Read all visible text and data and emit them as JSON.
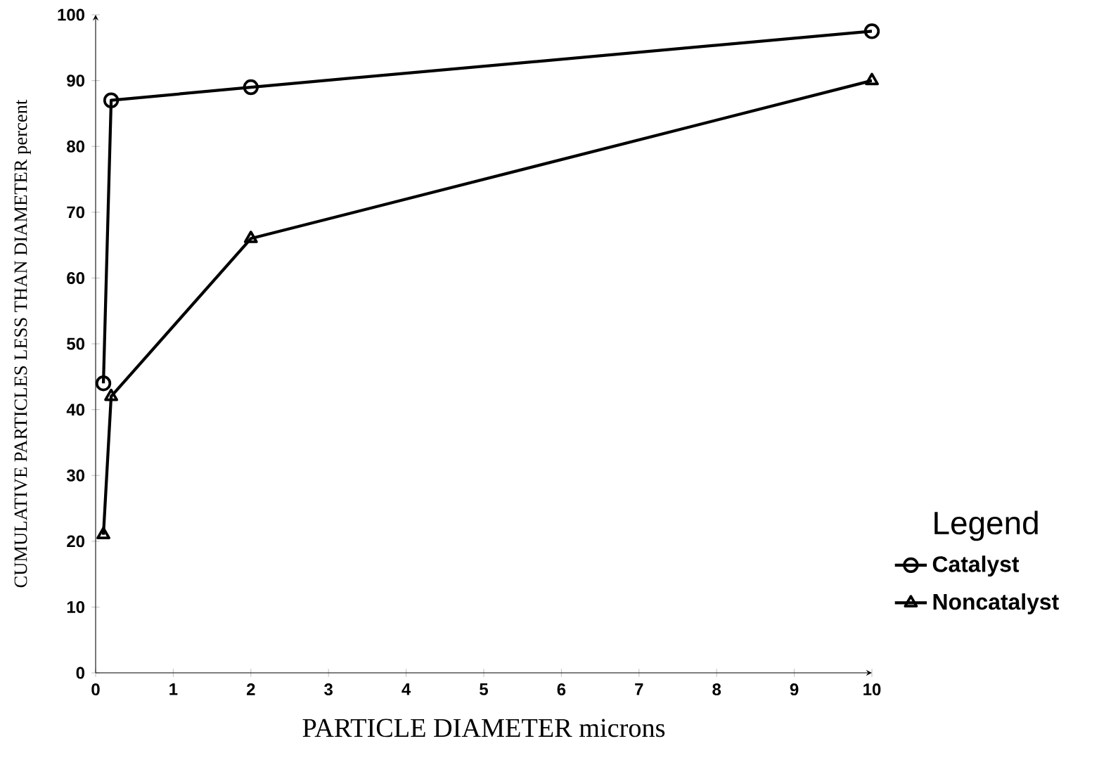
{
  "chart_data": {
    "type": "line",
    "xlabel": "PARTICLE DIAMETER microns",
    "ylabel": "CUMULATIVE PARTICLES LESS THAN DIAMETER percent",
    "legend_title": "Legend",
    "xlim": [
      0,
      10
    ],
    "ylim": [
      0,
      100
    ],
    "xticks": [
      0,
      1,
      2,
      3,
      4,
      5,
      6,
      7,
      8,
      9,
      10
    ],
    "yticks": [
      0,
      10,
      20,
      30,
      40,
      50,
      60,
      70,
      80,
      90,
      100
    ],
    "grid": false,
    "legend": "right",
    "series": [
      {
        "name": "Catalyst",
        "color": "#000000",
        "marker": "circle",
        "x": [
          0.1,
          0.2,
          2,
          10
        ],
        "values": [
          44,
          87,
          89,
          97.5
        ]
      },
      {
        "name": "Noncatalyst",
        "color": "#000000",
        "marker": "triangle",
        "x": [
          0.1,
          0.2,
          2,
          10
        ],
        "values": [
          21,
          42,
          66,
          90
        ]
      }
    ]
  }
}
